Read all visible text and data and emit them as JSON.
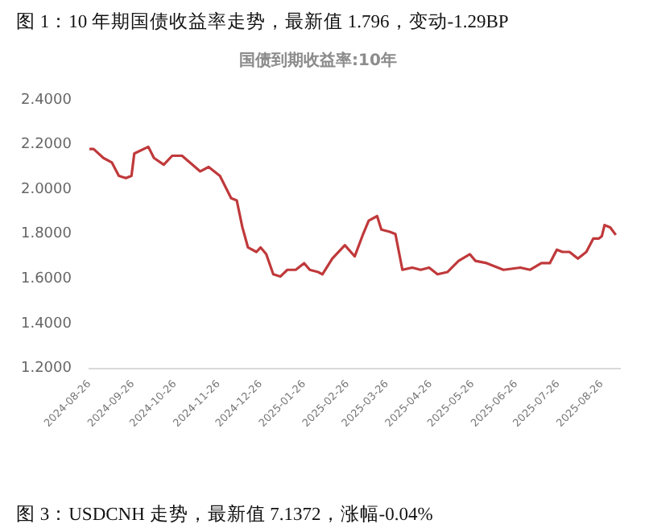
{
  "chart_data": {
    "type": "line",
    "title": "国债到期收益率:10年",
    "annotations": [
      "图 1：10 年期国债收益率走势，最新值 1.796，变动-1.29BP",
      "图 3：USDCNH 走势，最新值 7.1372，涨幅-0.04%"
    ],
    "x": [
      "2024-08-26",
      "2024-08-29",
      "2024-09-05",
      "2024-09-11",
      "2024-09-16",
      "2024-09-21",
      "2024-09-25",
      "2024-09-27",
      "2024-10-07",
      "2024-10-11",
      "2024-10-18",
      "2024-10-24",
      "2024-10-31",
      "2024-11-13",
      "2024-11-19",
      "2024-11-27",
      "2024-12-05",
      "2024-12-09",
      "2024-12-13",
      "2024-12-17",
      "2024-12-23",
      "2024-12-26",
      "2024-12-30",
      "2025-01-04",
      "2025-01-09",
      "2025-01-14",
      "2025-01-20",
      "2025-01-26",
      "2025-01-30",
      "2025-02-05",
      "2025-02-08",
      "2025-02-15",
      "2025-02-24",
      "2025-03-03",
      "2025-03-09",
      "2025-03-13",
      "2025-03-19",
      "2025-03-22",
      "2025-03-28",
      "2025-04-01",
      "2025-04-06",
      "2025-04-13",
      "2025-04-19",
      "2025-04-25",
      "2025-05-01",
      "2025-05-08",
      "2025-05-16",
      "2025-05-24",
      "2025-05-28",
      "2025-06-05",
      "2025-06-17",
      "2025-06-29",
      "2025-07-06",
      "2025-07-14",
      "2025-07-20",
      "2025-07-25",
      "2025-07-29",
      "2025-08-03",
      "2025-08-09",
      "2025-08-15",
      "2025-08-20",
      "2025-08-24",
      "2025-08-26",
      "2025-08-28",
      "2025-09-01",
      "2025-09-05"
    ],
    "series": [
      {
        "color": "#c0393b",
        "values": [
          2.18,
          2.18,
          2.14,
          2.12,
          2.06,
          2.05,
          2.06,
          2.16,
          2.19,
          2.14,
          2.11,
          2.15,
          2.15,
          2.08,
          2.1,
          2.06,
          1.96,
          1.95,
          1.83,
          1.74,
          1.72,
          1.74,
          1.71,
          1.62,
          1.61,
          1.64,
          1.64,
          1.67,
          1.64,
          1.63,
          1.62,
          1.69,
          1.75,
          1.7,
          1.8,
          1.86,
          1.88,
          1.82,
          1.81,
          1.8,
          1.64,
          1.65,
          1.64,
          1.65,
          1.62,
          1.63,
          1.68,
          1.71,
          1.68,
          1.67,
          1.64,
          1.65,
          1.64,
          1.67,
          1.67,
          1.73,
          1.72,
          1.72,
          1.69,
          1.72,
          1.78,
          1.78,
          1.79,
          1.84,
          1.83,
          1.796
        ]
      }
    ],
    "xlim": [
      "2024-08-26",
      "2025-09-08"
    ],
    "xticks": [
      "2024-08-26",
      "2024-09-26",
      "2024-10-26",
      "2024-11-26",
      "2024-12-26",
      "2025-01-26",
      "2025-02-26",
      "2025-03-26",
      "2025-04-26",
      "2025-05-26",
      "2025-06-26",
      "2025-07-26",
      "2025-08-26"
    ],
    "ylim": [
      1.2,
      2.4
    ],
    "yticks": [
      {
        "value": 1.2,
        "label": "1.2000"
      },
      {
        "value": 1.4,
        "label": "1.4000"
      },
      {
        "value": 1.6,
        "label": "1.6000"
      },
      {
        "value": 1.8,
        "label": "1.8000"
      },
      {
        "value": 2.0,
        "label": "2.0000"
      },
      {
        "value": 2.2,
        "label": "2.2000"
      },
      {
        "value": 2.4,
        "label": "2.4000"
      }
    ],
    "grid": false,
    "legend": false
  }
}
